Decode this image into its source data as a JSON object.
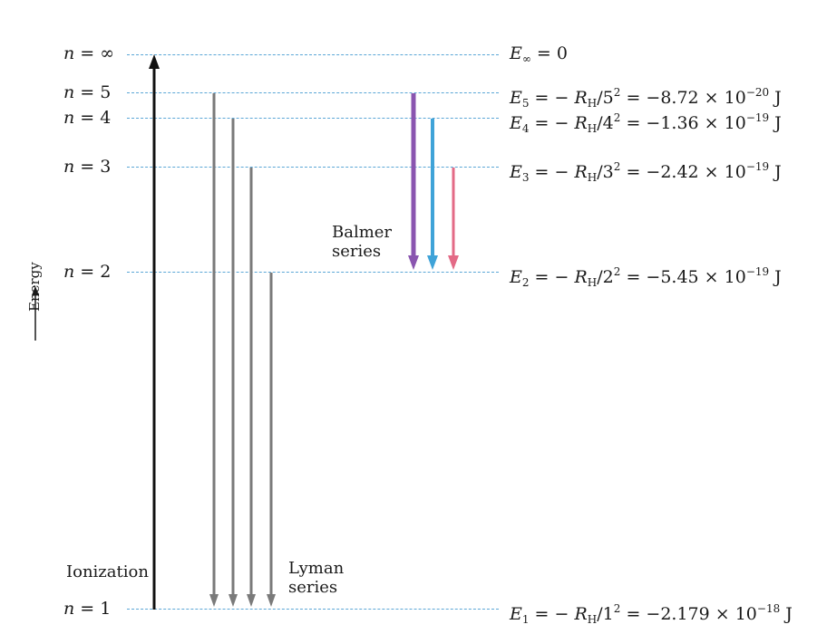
{
  "levels": [
    {
      "key": "inf",
      "n_label": "n = ",
      "n_value": "∞",
      "e_main": "E",
      "e_sub": "∞",
      "e_rest": " = 0",
      "e_power": "",
      "e_unit": ""
    },
    {
      "key": "n5",
      "n_label": "n = ",
      "n_value": "5",
      "e_main": "E",
      "e_sub": "5",
      "e_rest": " = − ",
      "e_rh": "R",
      "e_rh_sub": "H",
      "e_div": "/5",
      "e_div_sup": "2",
      "e_value": " = −8.72 × 10",
      "e_power": "−20",
      "e_unit": " J"
    },
    {
      "key": "n4",
      "n_label": "n = ",
      "n_value": "4",
      "e_main": "E",
      "e_sub": "4",
      "e_rest": " = − ",
      "e_rh": "R",
      "e_rh_sub": "H",
      "e_div": "/4",
      "e_div_sup": "2",
      "e_value": " = −1.36 × 10",
      "e_power": "−19",
      "e_unit": " J"
    },
    {
      "key": "n3",
      "n_label": "n = ",
      "n_value": "3",
      "e_main": "E",
      "e_sub": "3",
      "e_rest": " = − ",
      "e_rh": "R",
      "e_rh_sub": "H",
      "e_div": "/3",
      "e_div_sup": "2",
      "e_value": " = −2.42 × 10",
      "e_power": "−19",
      "e_unit": " J"
    },
    {
      "key": "n2",
      "n_label": "n = ",
      "n_value": "2",
      "e_main": "E",
      "e_sub": "2",
      "e_rest": " = − ",
      "e_rh": "R",
      "e_rh_sub": "H",
      "e_div": "/2",
      "e_div_sup": "2",
      "e_value": " = −5.45 × 10",
      "e_power": "−19",
      "e_unit": " J"
    },
    {
      "key": "n1",
      "n_label": "n = ",
      "n_value": "1",
      "e_main": "E",
      "e_sub": "1",
      "e_rest": " = − ",
      "e_rh": "R",
      "e_rh_sub": "H",
      "e_div": "/1",
      "e_div_sup": "2",
      "e_value": " = −2.179 × 10",
      "e_power": "−18",
      "e_unit": " J"
    }
  ],
  "labels": {
    "balmer_line1": "Balmer",
    "balmer_line2": "series",
    "lyman_line1": "Lyman",
    "lyman_line2": "series",
    "ionization": "Ionization",
    "energy_axis": "Energy"
  },
  "transitions": {
    "ionization": {
      "from": "1",
      "to": "∞",
      "color": "#111111"
    },
    "lyman": [
      {
        "from": "5",
        "to": "1",
        "color": "#7a7a7a"
      },
      {
        "from": "4",
        "to": "1",
        "color": "#7a7a7a"
      },
      {
        "from": "3",
        "to": "1",
        "color": "#7a7a7a"
      },
      {
        "from": "2",
        "to": "1",
        "color": "#7a7a7a"
      }
    ],
    "balmer": [
      {
        "from": "5",
        "to": "2",
        "color": "#8a55b0"
      },
      {
        "from": "4",
        "to": "2",
        "color": "#3fa3d8"
      },
      {
        "from": "3",
        "to": "2",
        "color": "#e36a86"
      }
    ]
  },
  "colors": {
    "level_line": "#5aa6d6",
    "text": "#1a1a1a"
  }
}
